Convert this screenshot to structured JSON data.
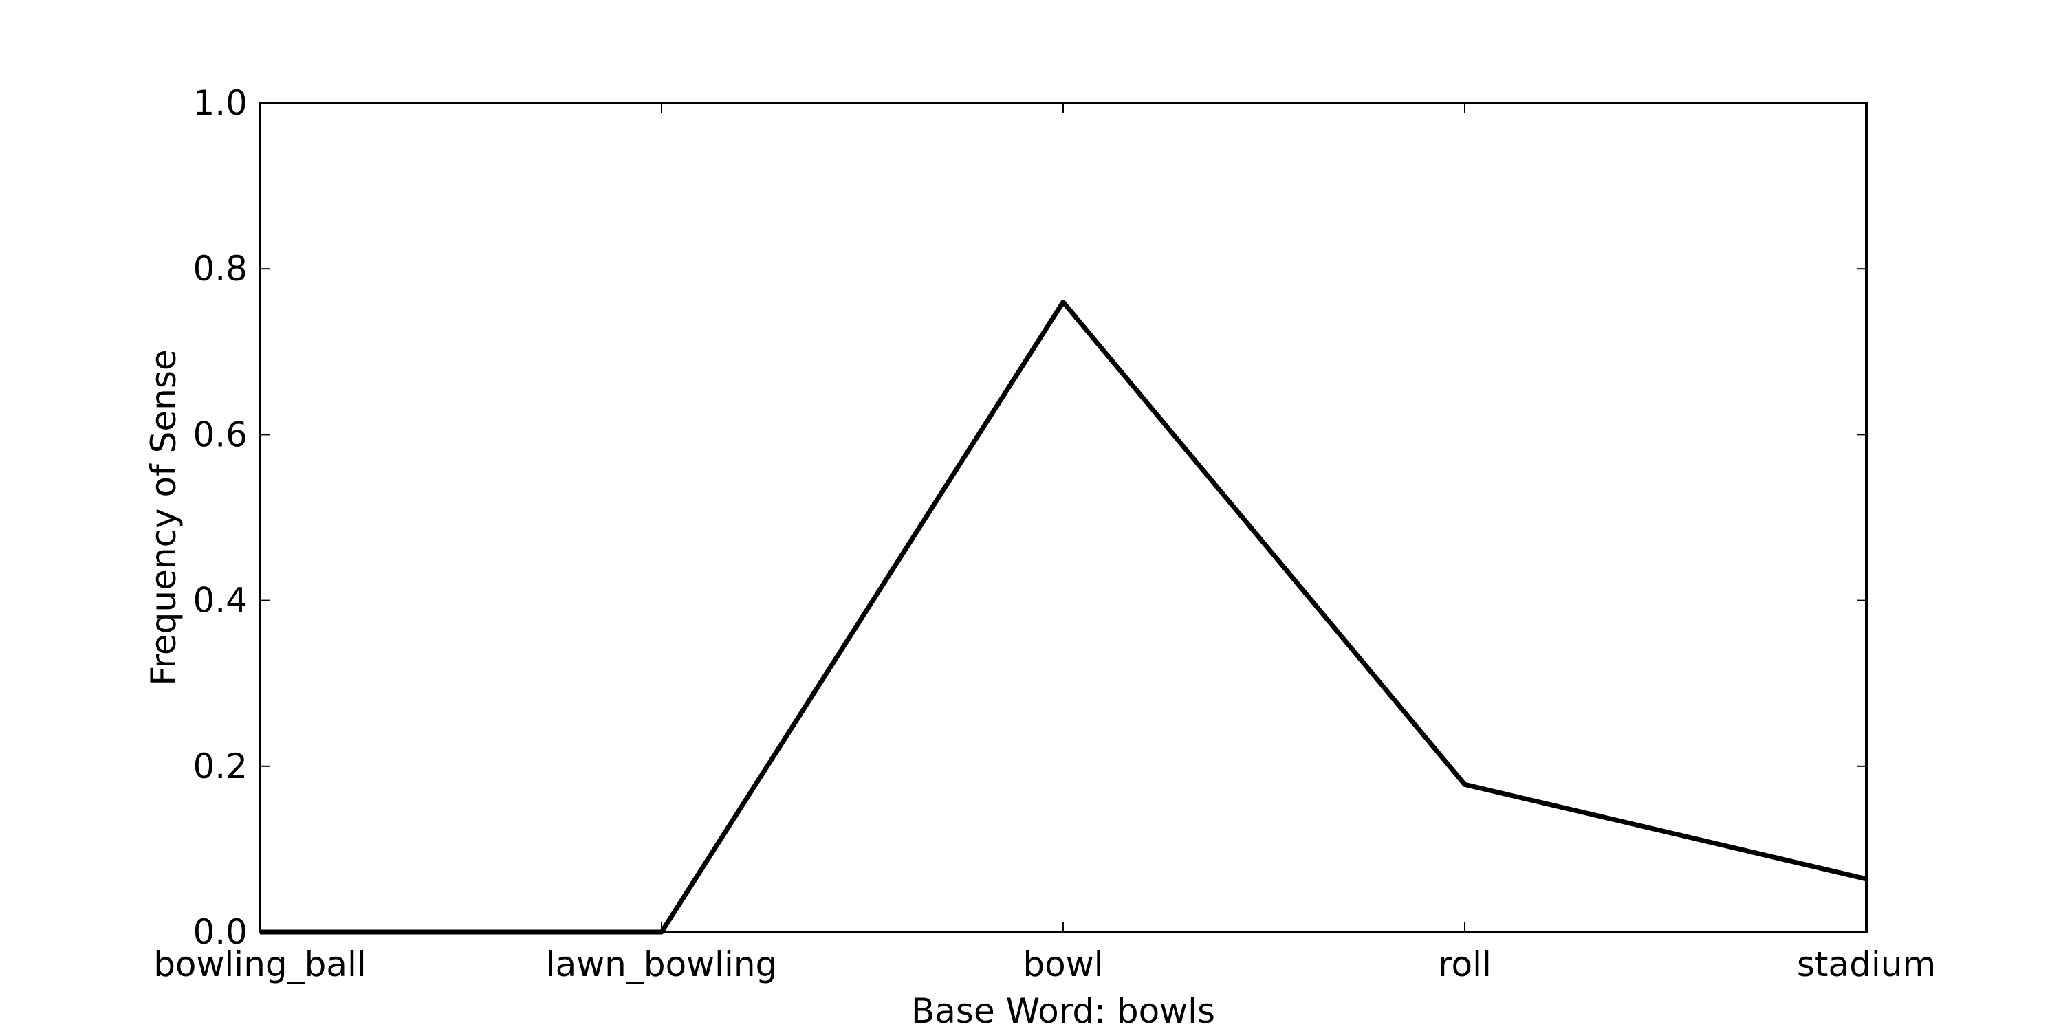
{
  "chart_data": {
    "type": "line",
    "xlabel": "Base Word: bowls",
    "ylabel": "Frequency of Sense",
    "categories": [
      "bowling_ball",
      "lawn_bowling",
      "bowl",
      "roll",
      "stadium"
    ],
    "values": [
      0.0,
      0.0,
      0.76,
      0.178,
      0.064
    ],
    "ylim": [
      0,
      1.0
    ],
    "yticks": [
      "0.0",
      "0.2",
      "0.4",
      "0.6",
      "0.8",
      "1.0"
    ],
    "grid": false,
    "line_color": "#000000"
  }
}
